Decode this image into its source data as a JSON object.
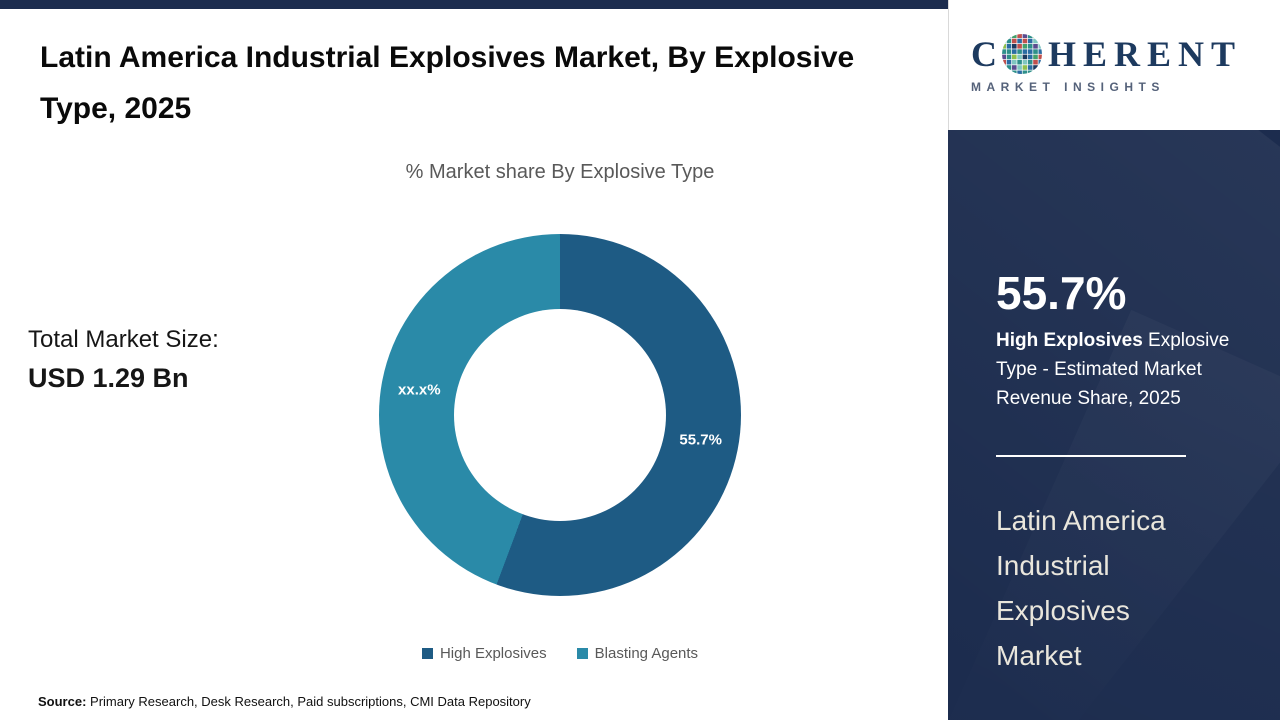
{
  "header": {
    "title": "Latin America Industrial Explosives Market, By Explosive Type, 2025"
  },
  "logo": {
    "prefix": "C",
    "suffix": "HERENT",
    "tagline": "MARKET INSIGHTS",
    "wordmark_color": "#1d3a5f"
  },
  "chart_data": {
    "type": "pie",
    "donut": true,
    "title": "% Market share By Explosive Type",
    "categories": [
      "High Explosives",
      "Blasting Agents"
    ],
    "values": [
      55.7,
      44.3
    ],
    "labels": [
      "55.7%",
      "xx.x%"
    ],
    "colors": [
      "#1e5b84",
      "#2a8aa8"
    ],
    "legend_position": "bottom",
    "start_angle_deg": 0,
    "direction": "clockwise"
  },
  "left_panel": {
    "market_size_label": "Total Market Size:",
    "market_size_value": "USD 1.29 Bn"
  },
  "sidebar": {
    "bg_color": "#1c2c4e",
    "stat_value": "55.7%",
    "stat_description_bold": "High Explosives",
    "stat_description_rest": " Explosive Type - Estimated Market Revenue Share, 2025",
    "market_name": "Latin America Industrial Explosives Market"
  },
  "footer": {
    "source_label": "Source:",
    "source_text": " Primary Research, Desk Research, Paid subscriptions, CMI Data Repository"
  }
}
